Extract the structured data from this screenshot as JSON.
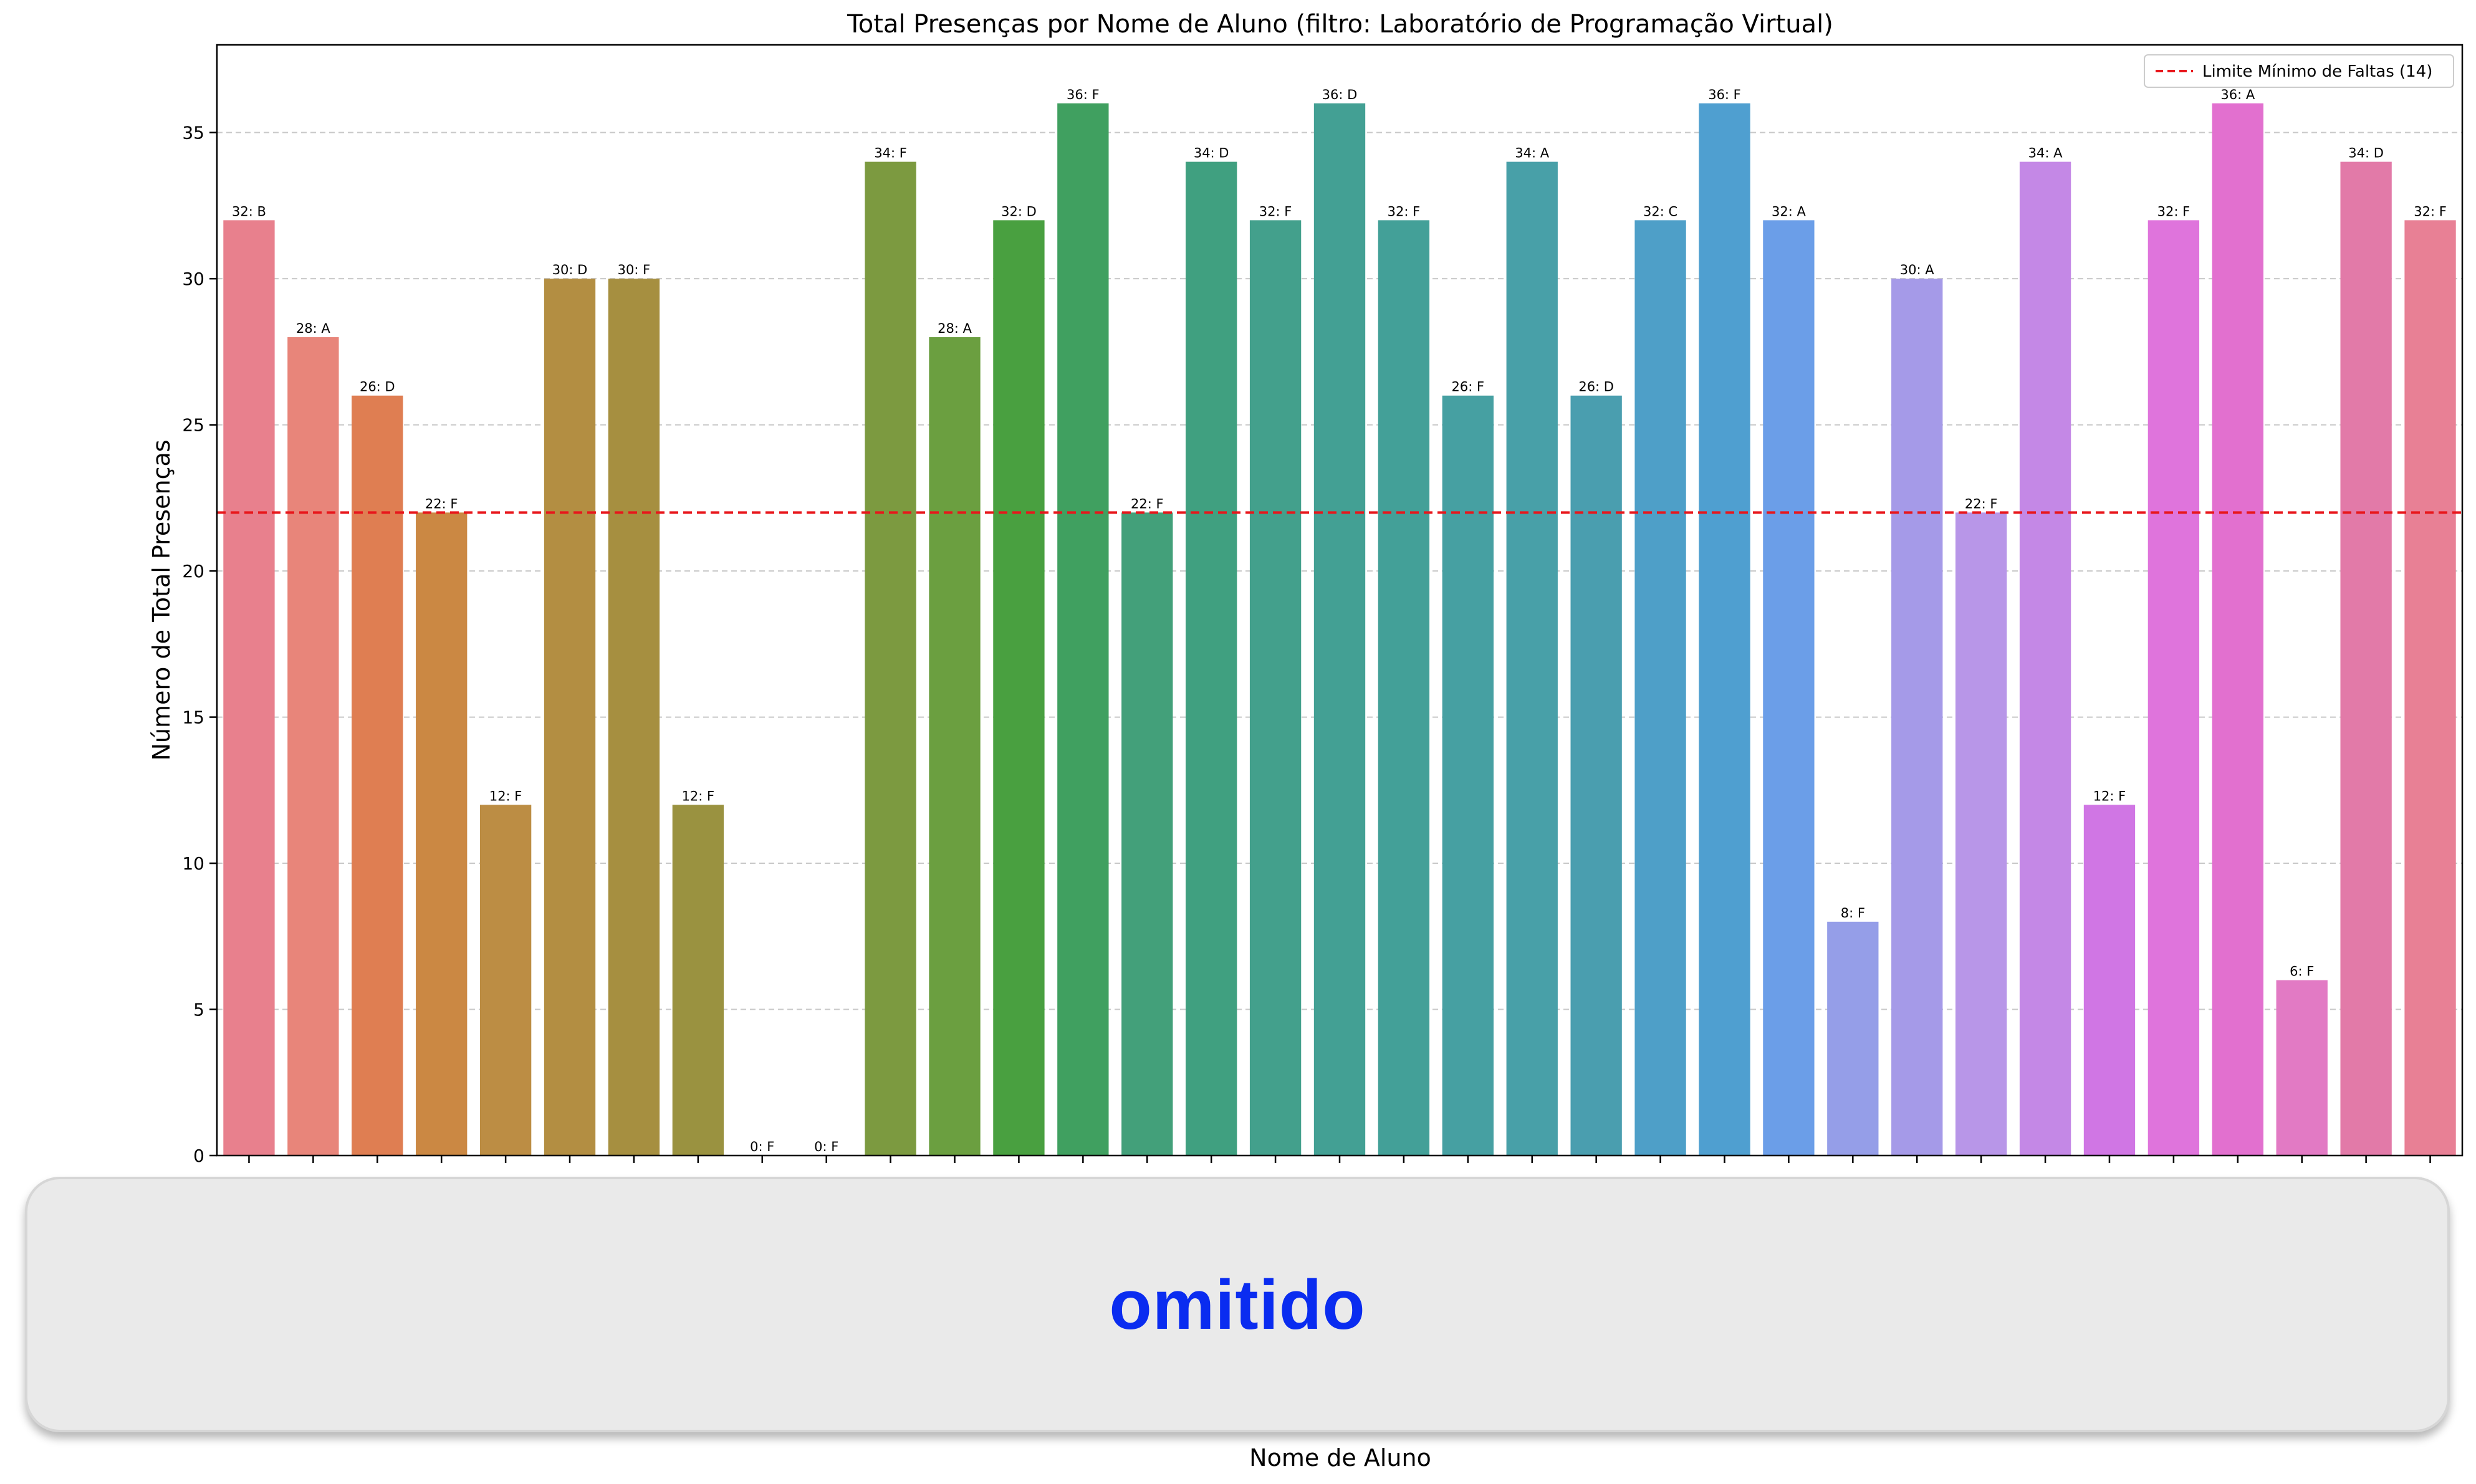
{
  "chart_data": {
    "type": "bar",
    "title": "Total Presenças por Nome de Aluno (filtro: Laboratório de Programação Virtual)",
    "xlabel": "Nome de Aluno",
    "ylabel": "Número de Total Presenças",
    "ylim": [
      0,
      38
    ],
    "yticks": [
      0,
      5,
      10,
      15,
      20,
      25,
      30,
      35
    ],
    "grid": "y-dashed",
    "legend_placement": "top-right",
    "threshold": {
      "label": "Limite Mínimo de Faltas (14)",
      "value": 22,
      "color": "#e8161b"
    },
    "values": [
      32,
      28,
      26,
      22,
      12,
      30,
      30,
      12,
      0,
      0,
      34,
      28,
      32,
      36,
      22,
      34,
      32,
      36,
      32,
      26,
      34,
      26,
      32,
      36,
      32,
      8,
      30,
      22,
      34,
      12,
      32,
      36,
      6,
      34,
      32
    ],
    "data_labels": [
      "32: B",
      "28: A",
      "26: D",
      "22: F",
      "12: F",
      "30: D",
      "30: F",
      "12: F",
      "0: F",
      "0: F",
      "34: F",
      "28: A",
      "32: D",
      "36: F",
      "22: F",
      "34: D",
      "32: F",
      "36: D",
      "32: F",
      "26: F",
      "34: A",
      "26: D",
      "32: C",
      "36: F",
      "32: A",
      "8: F",
      "30: A",
      "22: F",
      "34: A",
      "12: F",
      "32: F",
      "36: A",
      "6: F",
      "34: D",
      "32: F"
    ],
    "colors": [
      "#e8808d",
      "#e8857a",
      "#df7e52",
      "#cb8843",
      "#bc8d44",
      "#b38e42",
      "#a68f40",
      "#9a9240",
      "#8c9640",
      "#849a40",
      "#7c9a40",
      "#6b9f40",
      "#49a040",
      "#40a060",
      "#43a07a",
      "#40a080",
      "#43a08c",
      "#43a094",
      "#43a098",
      "#46a0a2",
      "#48a0a8",
      "#4a9eaf",
      "#4e9fc8",
      "#4f9fd0",
      "#6b9ee8",
      "#959ee8",
      "#a59ae8",
      "#b896e8",
      "#c488e6",
      "#d076e4",
      "#df74dc",
      "#e270cf",
      "#e27ac4",
      "#e27aa8",
      "#e88095"
    ]
  },
  "overlay": {
    "text": "omitido"
  }
}
